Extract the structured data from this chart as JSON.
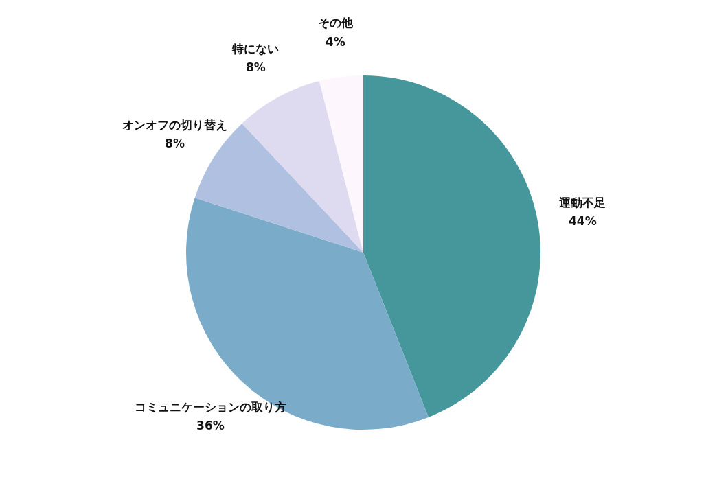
{
  "chart_data": {
    "type": "pie",
    "categories": [
      "運動不足",
      "コミュニケーションの取り方",
      "オンオフの切り替え",
      "特にない",
      "その他"
    ],
    "values": [
      44,
      36,
      8,
      8,
      4
    ],
    "colors": [
      "#45979b",
      "#7aabc8",
      "#afc0e0",
      "#dedaf0",
      "#fdf6fd"
    ],
    "value_labels": [
      "44%",
      "36%",
      "8%",
      "8%",
      "4%"
    ],
    "legend": false
  }
}
